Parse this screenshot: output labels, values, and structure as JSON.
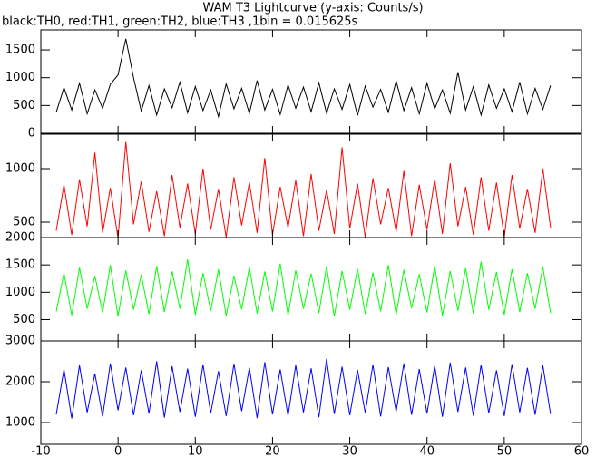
{
  "title": "WAM T3 Lightcurve (y-axis: Counts/s)",
  "subtitle": "black:TH0, red:TH1, green:TH2, blue:TH3 ,1bin = 0.015625s",
  "chart_data": [
    {
      "type": "line",
      "x": [
        -8,
        -7,
        -6,
        -5,
        -4,
        -3,
        -2,
        -1,
        0,
        1,
        2,
        3,
        4,
        5,
        6,
        7,
        8,
        9,
        10,
        11,
        12,
        13,
        14,
        15,
        16,
        17,
        18,
        19,
        20,
        21,
        22,
        23,
        24,
        25,
        26,
        27,
        28,
        29,
        30,
        31,
        32,
        33,
        34,
        35,
        36,
        37,
        38,
        39,
        40,
        41,
        42,
        43,
        44,
        45,
        46,
        47,
        48,
        49,
        50,
        51,
        52,
        53,
        54,
        55,
        56
      ],
      "series": [
        {
          "name": "TH0",
          "color": "#000000",
          "values": [
            380,
            820,
            420,
            900,
            350,
            780,
            450,
            880,
            1050,
            1700,
            1000,
            400,
            860,
            330,
            800,
            460,
            920,
            370,
            840,
            410,
            780,
            300,
            890,
            440,
            810,
            360,
            950,
            420,
            790,
            340,
            870,
            450,
            830,
            390,
            910,
            360,
            800,
            430,
            880,
            320,
            850,
            470,
            790,
            380,
            940,
            410,
            820,
            350,
            900,
            440,
            780,
            360,
            1100,
            420,
            840,
            330,
            870,
            450,
            800,
            390,
            920,
            350,
            810,
            430,
            860
          ]
        }
      ],
      "xlim": [
        -10,
        60
      ],
      "xticks": [
        -10,
        0,
        10,
        20,
        30,
        40,
        50,
        60
      ],
      "ylim": [
        0,
        1860
      ],
      "yticks": [
        0,
        500,
        1000,
        1500
      ]
    },
    {
      "type": "line",
      "x": [
        -8,
        -7,
        -6,
        -5,
        -4,
        -3,
        -2,
        -1,
        0,
        1,
        2,
        3,
        4,
        5,
        6,
        7,
        8,
        9,
        10,
        11,
        12,
        13,
        14,
        15,
        16,
        17,
        18,
        19,
        20,
        21,
        22,
        23,
        24,
        25,
        26,
        27,
        28,
        29,
        30,
        31,
        32,
        33,
        34,
        35,
        36,
        37,
        38,
        39,
        40,
        41,
        42,
        43,
        44,
        45,
        46,
        47,
        48,
        49,
        50,
        51,
        52,
        53,
        54,
        55,
        56
      ],
      "series": [
        {
          "name": "TH1",
          "color": "#ff0000",
          "values": [
            420,
            850,
            380,
            900,
            460,
            1150,
            400,
            820,
            350,
            1250,
            480,
            880,
            410,
            790,
            370,
            940,
            450,
            860,
            390,
            1000,
            430,
            810,
            360,
            920,
            470,
            870,
            400,
            1100,
            380,
            830,
            450,
            890,
            370,
            950,
            420,
            800,
            390,
            1200,
            440,
            860,
            360,
            910,
            480,
            820,
            410,
            980,
            370,
            850,
            430,
            900,
            390,
            1050,
            460,
            830,
            380,
            920,
            420,
            870,
            360,
            940,
            440,
            810,
            400,
            1000,
            450
          ]
        }
      ],
      "xlim": [
        -10,
        60
      ],
      "xticks": [
        -10,
        0,
        10,
        20,
        30,
        40,
        50,
        60
      ],
      "ylim": [
        356,
        1322
      ],
      "yticks": [
        500,
        1000
      ]
    },
    {
      "type": "line",
      "x": [
        -8,
        -7,
        -6,
        -5,
        -4,
        -3,
        -2,
        -1,
        0,
        1,
        2,
        3,
        4,
        5,
        6,
        7,
        8,
        9,
        10,
        11,
        12,
        13,
        14,
        15,
        16,
        17,
        18,
        19,
        20,
        21,
        22,
        23,
        24,
        25,
        26,
        27,
        28,
        29,
        30,
        31,
        32,
        33,
        34,
        35,
        36,
        37,
        38,
        39,
        40,
        41,
        42,
        43,
        44,
        45,
        46,
        47,
        48,
        49,
        50,
        51,
        52,
        53,
        54,
        55,
        56
      ],
      "series": [
        {
          "name": "TH2",
          "color": "#00ff00",
          "values": [
            650,
            1350,
            580,
            1450,
            700,
            1300,
            620,
            1500,
            560,
            1400,
            680,
            1320,
            600,
            1480,
            640,
            1380,
            700,
            1600,
            590,
            1350,
            660,
            1420,
            570,
            1300,
            690,
            1460,
            610,
            1380,
            650,
            1520,
            580,
            1400,
            700,
            1340,
            620,
            1470,
            560,
            1390,
            680,
            1430,
            600,
            1360,
            650,
            1500,
            590,
            1410,
            710,
            1330,
            630,
            1480,
            570,
            1390,
            660,
            1440,
            610,
            1560,
            680,
            1370,
            590,
            1420,
            640,
            1350,
            700,
            1460,
            620
          ]
        }
      ],
      "xlim": [
        -10,
        60
      ],
      "xticks": [
        -10,
        0,
        10,
        20,
        30,
        40,
        50,
        60
      ],
      "ylim": [
        110,
        2000
      ],
      "yticks": [
        500,
        1000,
        1500,
        2000
      ]
    },
    {
      "type": "line",
      "x": [
        -8,
        -7,
        -6,
        -5,
        -4,
        -3,
        -2,
        -1,
        0,
        1,
        2,
        3,
        4,
        5,
        6,
        7,
        8,
        9,
        10,
        11,
        12,
        13,
        14,
        15,
        16,
        17,
        18,
        19,
        20,
        21,
        22,
        23,
        24,
        25,
        26,
        27,
        28,
        29,
        30,
        31,
        32,
        33,
        34,
        35,
        36,
        37,
        38,
        39,
        40,
        41,
        42,
        43,
        44,
        45,
        46,
        47,
        48,
        49,
        50,
        51,
        52,
        53,
        54,
        55,
        56
      ],
      "series": [
        {
          "name": "TH3",
          "color": "#0000ff",
          "values": [
            1200,
            2300,
            1100,
            2400,
            1250,
            2200,
            1150,
            2450,
            1300,
            2350,
            1180,
            2280,
            1220,
            2500,
            1120,
            2380,
            1260,
            2320,
            1140,
            2420,
            1230,
            2260,
            1160,
            2440,
            1280,
            2340,
            1110,
            2480,
            1200,
            2300,
            1170,
            2400,
            1250,
            2330,
            1130,
            2560,
            1210,
            2370,
            1180,
            2290,
            1240,
            2420,
            1150,
            2360,
            1270,
            2450,
            1190,
            2310,
            1220,
            2390,
            1140,
            2470,
            1260,
            2350,
            1170,
            2410,
            1230,
            2280,
            1160,
            2430,
            1250,
            2340,
            1190,
            2400,
            1210
          ]
        }
      ],
      "xlim": [
        -10,
        60
      ],
      "xticks": [
        -10,
        0,
        10,
        20,
        30,
        40,
        50,
        60
      ],
      "ylim": [
        467,
        3000
      ],
      "yticks": [
        1000,
        2000,
        3000
      ]
    }
  ]
}
